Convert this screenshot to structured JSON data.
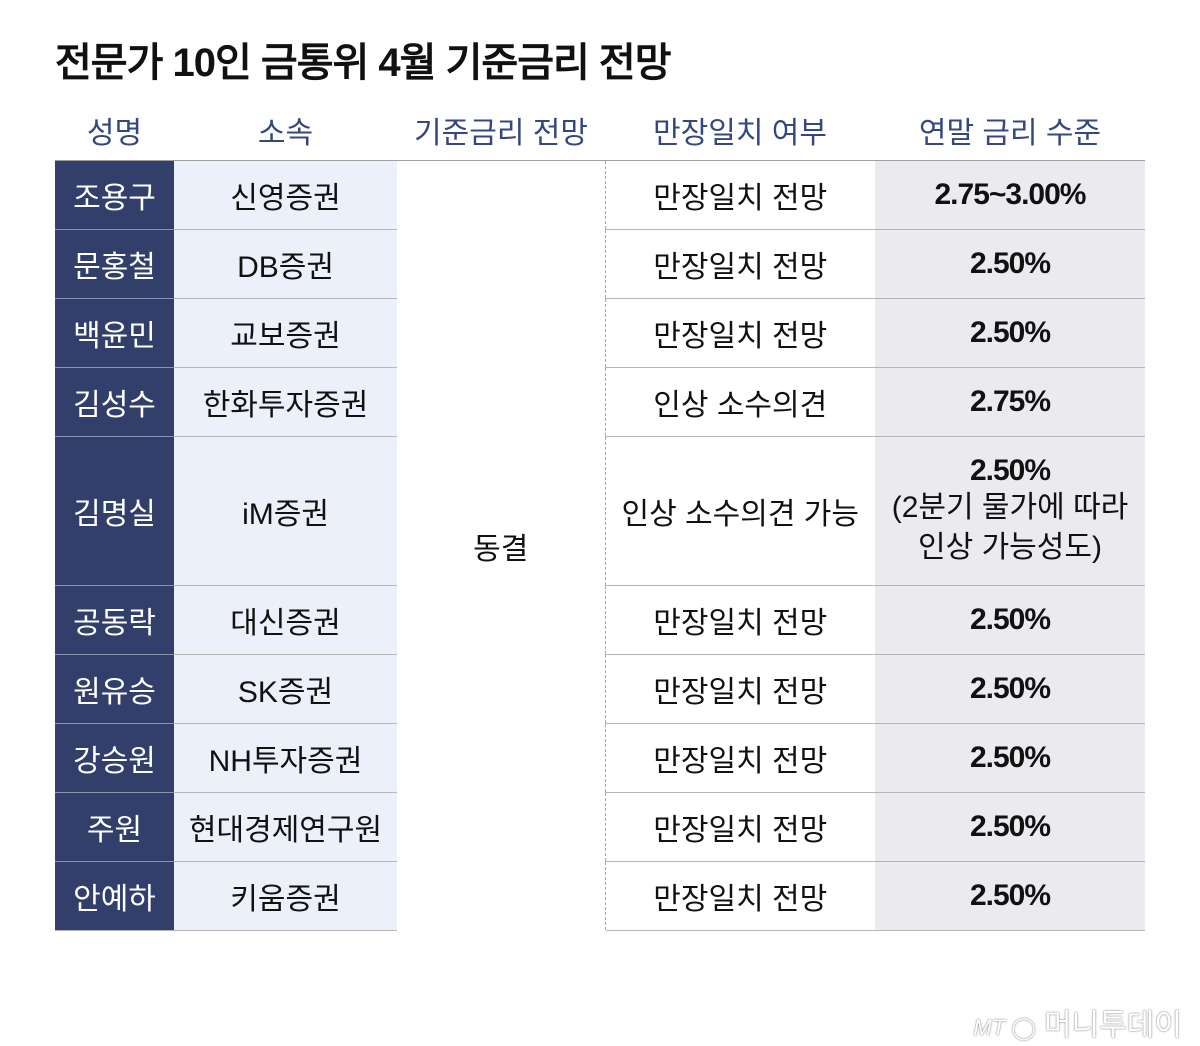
{
  "title": "전문가 10인 금통위 4월 기준금리 전망",
  "headers": [
    "성명",
    "소속",
    "기준금리 전망",
    "만장일치 여부",
    "연말 금리 수준"
  ],
  "outlook": "동결",
  "rows": [
    {
      "name": "조용구",
      "org": "신영증권",
      "consensus": "만장일치 전망",
      "rate": "2.75~3.00%"
    },
    {
      "name": "문홍철",
      "org": "DB증권",
      "consensus": "만장일치 전망",
      "rate": "2.50%"
    },
    {
      "name": "백윤민",
      "org": "교보증권",
      "consensus": "만장일치 전망",
      "rate": "2.50%"
    },
    {
      "name": "김성수",
      "org": "한화투자증권",
      "consensus": "인상 소수의견",
      "rate": "2.75%"
    },
    {
      "name": "김명실",
      "org": "iM증권",
      "consensus": "인상 소수의견 가능",
      "rate": "2.50%",
      "note": "(2분기 물가에 따라 인상 가능성도)"
    },
    {
      "name": "공동락",
      "org": "대신증권",
      "consensus": "만장일치 전망",
      "rate": "2.50%"
    },
    {
      "name": "원유승",
      "org": "SK증권",
      "consensus": "만장일치 전망",
      "rate": "2.50%"
    },
    {
      "name": "강승원",
      "org": "NH투자증권",
      "consensus": "만장일치 전망",
      "rate": "2.50%"
    },
    {
      "name": "주원",
      "org": "현대경제연구원",
      "consensus": "만장일치 전망",
      "rate": "2.50%"
    },
    {
      "name": "안예하",
      "org": "키움증권",
      "consensus": "만장일치 전망",
      "rate": "2.50%"
    }
  ],
  "logo": {
    "mark": "MT",
    "text": "머니투데이"
  },
  "colors": {
    "name_bg": "#323f6b",
    "org_bg": "#ebf0fb",
    "rate_bg": "#ebebef",
    "header_text": "#34477f"
  }
}
